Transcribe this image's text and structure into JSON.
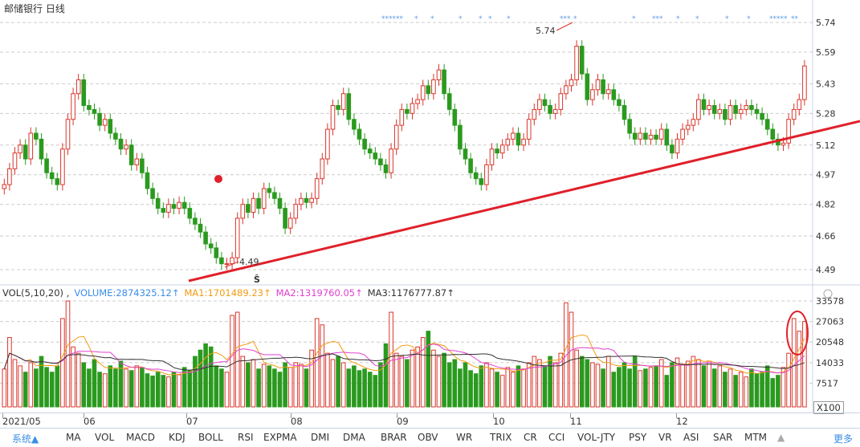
{
  "title": "邮储银行  日线",
  "price_axis": [
    "5.74",
    "5.59",
    "5.43",
    "5.28",
    "5.12",
    "4.97",
    "4.82",
    "4.66",
    "4.49"
  ],
  "price_range": [
    4.49,
    5.74
  ],
  "annotations": {
    "high": "5.74",
    "low": "4.49",
    "s_marker": "Ŝ",
    "stars": [
      "******",
      "*",
      "*",
      "*",
      "*",
      "*",
      "*",
      "***",
      "*",
      "*",
      "***",
      "*",
      "*",
      "*",
      "*",
      "*****",
      "**"
    ]
  },
  "colors": {
    "up": "#d9352b",
    "down": "#2a9a1f",
    "trendline": "#e0202a",
    "ma1": "#f39c12",
    "ma2": "#e040d0",
    "ma3": "#333333",
    "volume": "#3a8ee6"
  },
  "vol_header": {
    "name": "VOL(5,10,20) ,",
    "volume": "VOLUME:2874325.12↑",
    "ma1": "MA1:1701489.23↑",
    "ma2": "MA2:1319760.05↑",
    "ma3": "MA3:1176777.87↑"
  },
  "vol_axis": [
    "33578",
    "27063",
    "20548",
    "14033",
    "7517"
  ],
  "vol_unit": "X100",
  "dates": [
    "2021/05",
    "06",
    "07",
    "08",
    "09",
    "10",
    "11",
    "12"
  ],
  "tabs": {
    "system": "系统▲",
    "items": [
      "MA",
      "VOL",
      "MACD",
      "KDJ",
      "BOLL",
      "RSI",
      "EXPMA",
      "DMI",
      "DMA",
      "BRAR",
      "OBV",
      "WR",
      "TRIX",
      "CR",
      "CCI",
      "VOL-JTY",
      "PSY",
      "VR",
      "ASI",
      "SAR",
      "MTM",
      "▲"
    ],
    "more": "更多"
  },
  "chart_data": {
    "type": "candlestick",
    "close": [
      4.92,
      5.0,
      5.08,
      5.12,
      5.05,
      5.18,
      5.15,
      5.05,
      4.98,
      4.95,
      4.92,
      5.1,
      5.25,
      5.38,
      5.45,
      5.32,
      5.3,
      5.28,
      5.22,
      5.25,
      5.18,
      5.15,
      5.1,
      5.12,
      5.02,
      5.05,
      4.98,
      4.9,
      4.85,
      4.8,
      4.78,
      4.82,
      4.8,
      4.83,
      4.8,
      4.75,
      4.72,
      4.68,
      4.62,
      4.6,
      4.55,
      4.52,
      4.52,
      4.55,
      4.75,
      4.82,
      4.78,
      4.85,
      4.8,
      4.9,
      4.88,
      4.85,
      4.8,
      4.7,
      4.75,
      4.82,
      4.85,
      4.83,
      4.85,
      4.95,
      5.05,
      5.2,
      5.32,
      5.3,
      5.38,
      5.25,
      5.2,
      5.15,
      5.1,
      5.08,
      5.05,
      5.02,
      4.98,
      5.1,
      5.22,
      5.3,
      5.28,
      5.33,
      5.35,
      5.42,
      5.38,
      5.45,
      5.5,
      5.38,
      5.3,
      5.22,
      5.1,
      5.05,
      4.98,
      4.95,
      4.92,
      5.02,
      5.1,
      5.08,
      5.12,
      5.15,
      5.18,
      5.12,
      5.15,
      5.25,
      5.3,
      5.35,
      5.32,
      5.28,
      5.3,
      5.38,
      5.42,
      5.45,
      5.62,
      5.48,
      5.35,
      5.4,
      5.45,
      5.38,
      5.4,
      5.35,
      5.32,
      5.25,
      5.18,
      5.15,
      5.18,
      5.15,
      5.17,
      5.15,
      5.2,
      5.12,
      5.08,
      5.15,
      5.2,
      5.22,
      5.25,
      5.35,
      5.3,
      5.32,
      5.28,
      5.3,
      5.25,
      5.32,
      5.28,
      5.3,
      5.32,
      5.3,
      5.28,
      5.25,
      5.2,
      5.15,
      5.12,
      5.13,
      5.25,
      5.3,
      5.35,
      5.52
    ],
    "volume": [
      12000,
      22000,
      15000,
      13000,
      11000,
      14000,
      12000,
      16000,
      12500,
      11000,
      13000,
      28000,
      33578,
      19000,
      17000,
      14000,
      12000,
      15000,
      11000,
      10500,
      13000,
      12000,
      14500,
      12000,
      11500,
      13000,
      12500,
      10500,
      9800,
      11000,
      10000,
      9500,
      11000,
      10200,
      12500,
      11500,
      16000,
      18000,
      20000,
      19000,
      13000,
      12000,
      11000,
      29000,
      30000,
      16000,
      14000,
      15000,
      12000,
      13500,
      13000,
      12000,
      11000,
      14000,
      12500,
      14000,
      13500,
      12000,
      18000,
      28000,
      26000,
      17000,
      15000,
      16000,
      14000,
      12000,
      13000,
      11500,
      12000,
      11000,
      10000,
      14000,
      20000,
      30000,
      17000,
      16000,
      15000,
      18000,
      19000,
      22000,
      24000,
      18000,
      16000,
      17000,
      14000,
      15000,
      12000,
      14000,
      11500,
      10500,
      13000,
      14000,
      12000,
      11000,
      10000,
      12500,
      11000,
      13000,
      12000,
      14000,
      16000,
      15000,
      13000,
      16000,
      14000,
      17000,
      33000,
      30000,
      18000,
      16000,
      15000,
      14000,
      13500,
      12000,
      16000,
      11000,
      12500,
      14000,
      12000,
      16000,
      11500,
      12000,
      12500,
      13000,
      15000,
      10000,
      14000,
      15500,
      13500,
      14500,
      16000,
      15000,
      13000,
      14500,
      12000,
      13000,
      11000,
      12000,
      10000,
      11000,
      9500,
      12000,
      10500,
      11000,
      13000,
      9000,
      10000,
      12500,
      17000,
      28000,
      24000,
      27063
    ]
  }
}
